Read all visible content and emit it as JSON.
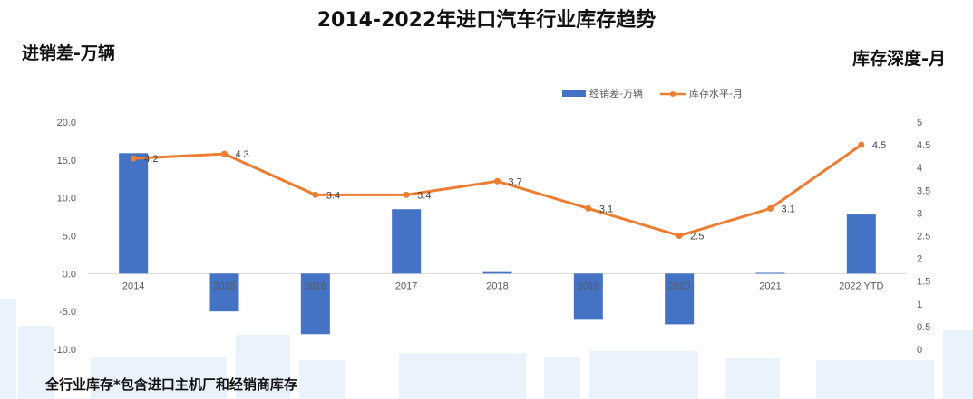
{
  "title": "2014-2022年进口汽车行业库存趋势",
  "left_axis_label": "进销差-万辆",
  "right_axis_label": "库存深度-月",
  "footnote": "全行业库存*包含进口主机厂和经销商库存",
  "chart_data": {
    "type": "bar+line",
    "categories": [
      "2014",
      "2015",
      "2016",
      "2017",
      "2018",
      "2019",
      "2020",
      "2021",
      "2022 YTD"
    ],
    "series": [
      {
        "name": "经销差-万辆",
        "type": "bar",
        "axis": "left",
        "color": "#4472C4",
        "values": [
          15.9,
          -5.0,
          -8.0,
          8.5,
          0.2,
          -6.1,
          -6.7,
          0.1,
          7.8
        ]
      },
      {
        "name": "库存水平-月",
        "type": "line",
        "axis": "right",
        "color": "#ED7D31",
        "values": [
          4.2,
          4.3,
          3.4,
          3.4,
          3.7,
          3.1,
          2.5,
          3.1,
          4.5
        ],
        "labels": [
          "4.2",
          "4.3",
          "3.4",
          "3.4",
          "3.7",
          "3.1",
          "2.5",
          "3.1",
          "4.5"
        ]
      }
    ],
    "left_axis": {
      "min": -10,
      "max": 20,
      "step": 5,
      "ticks": [
        "-10.0",
        "-5.0",
        "0.0",
        "5.0",
        "10.0",
        "15.0",
        "20.0"
      ]
    },
    "right_axis": {
      "min": 0,
      "max": 5,
      "step": 0.5,
      "ticks": [
        "0",
        "0.5",
        "1",
        "1.5",
        "2",
        "2.5",
        "3",
        "3.5",
        "4",
        "4.5",
        "5"
      ]
    },
    "legend_position": "top-right",
    "grid": false
  }
}
